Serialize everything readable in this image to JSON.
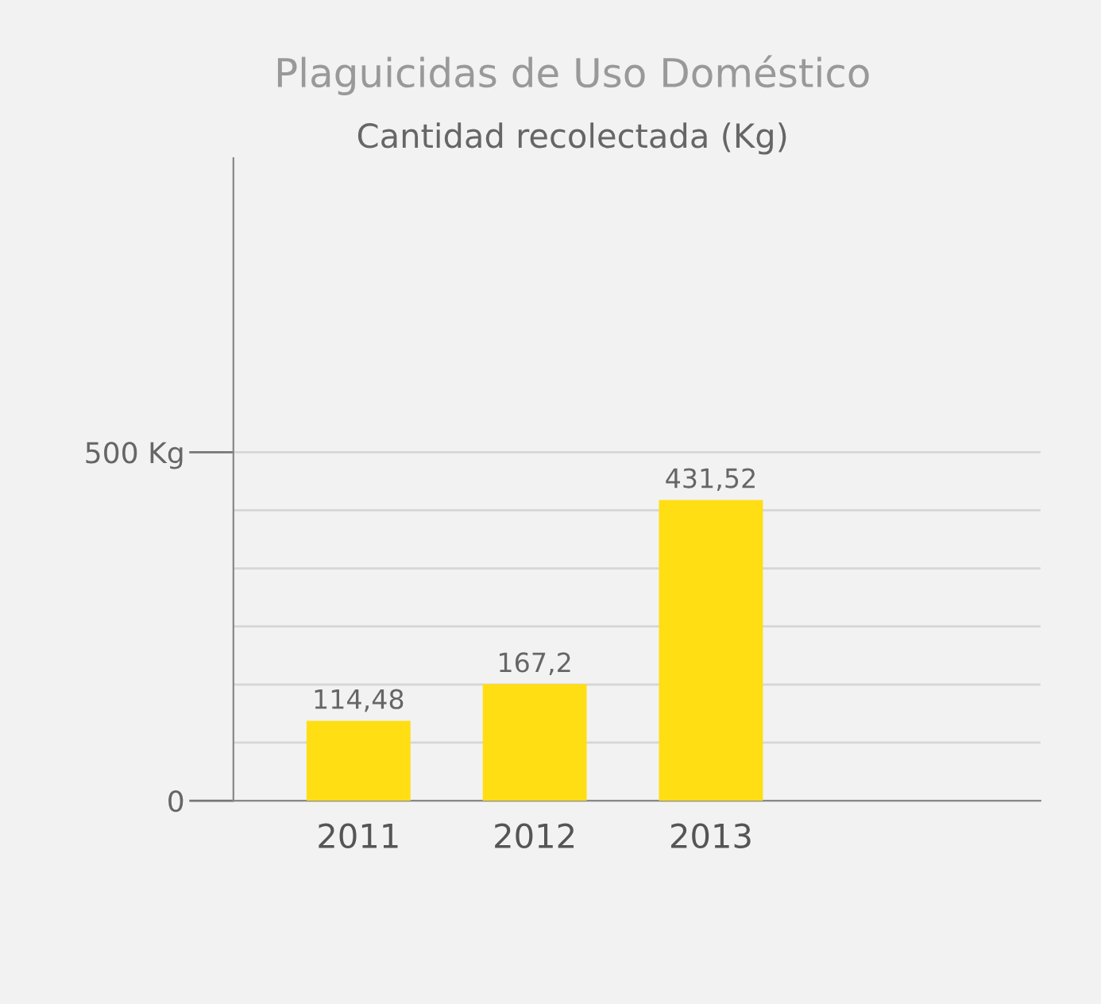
{
  "chart_data": {
    "type": "bar",
    "title": "Plaguicidas de Uso Doméstico",
    "subtitle": "Cantidad recolectada (Kg)",
    "categories": [
      "2011",
      "2012",
      "2013"
    ],
    "values": [
      114.48,
      167.2,
      431.52
    ],
    "value_labels": [
      "114,48",
      "167,2",
      "431,52"
    ],
    "color": "#ffde14",
    "ylim": [
      0,
      922
    ],
    "yticks": [
      {
        "value": 0,
        "label": "0"
      },
      {
        "value": 83.33,
        "label": null
      },
      {
        "value": 166.67,
        "label": null
      },
      {
        "value": 250,
        "label": null
      },
      {
        "value": 333.33,
        "label": null
      },
      {
        "value": 416.67,
        "label": null
      },
      {
        "value": 500,
        "label": "500 Kg"
      }
    ],
    "grid": "y"
  }
}
